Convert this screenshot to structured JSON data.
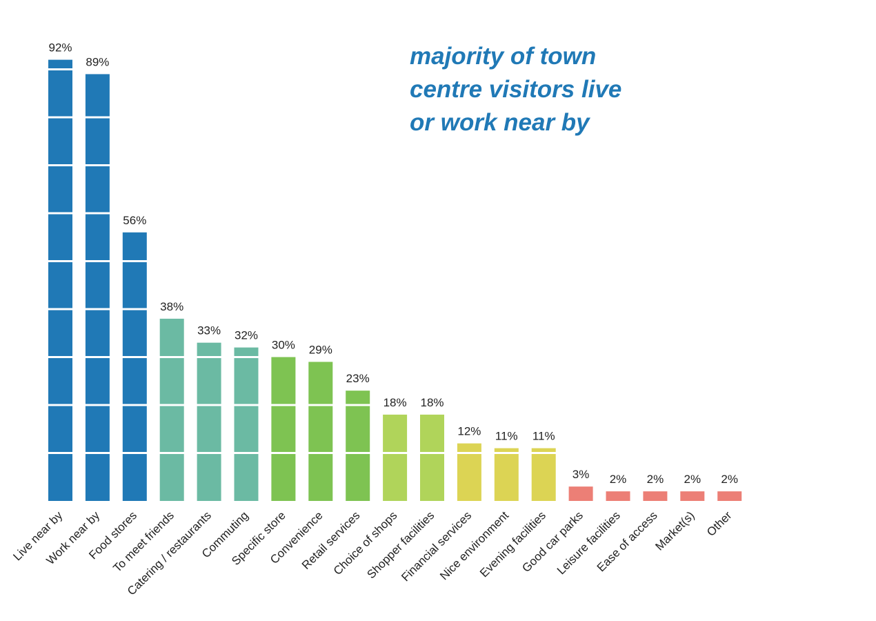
{
  "headline": {
    "lines": [
      "majority of town",
      "centre visitors live",
      "or work near by"
    ]
  },
  "chart_data": {
    "type": "bar",
    "categories": [
      "Live near by",
      "Work near by",
      "Food stores",
      "To meet friends",
      "Catering / restaurants",
      "Commuting",
      "Specific store",
      "Convenience",
      "Retail services",
      "Choice of shops",
      "Shopper facilities",
      "Financial services",
      "Nice environment",
      "Evening facilities",
      "Good car parks",
      "Leisure facilities",
      "Ease of access",
      "Market(s)",
      "Other"
    ],
    "values": [
      92,
      89,
      56,
      38,
      33,
      32,
      30,
      29,
      23,
      18,
      18,
      12,
      11,
      11,
      3,
      2,
      2,
      2,
      2
    ],
    "data_labels": [
      "92%",
      "89%",
      "56%",
      "38%",
      "33%",
      "32%",
      "30%",
      "29%",
      "23%",
      "18%",
      "18%",
      "12%",
      "11%",
      "11%",
      "3%",
      "2%",
      "2%",
      "2%",
      "2%"
    ],
    "colors": [
      "#2079b6",
      "#2079b6",
      "#2079b6",
      "#6bbaa3",
      "#6bbaa3",
      "#6bbaa3",
      "#7ec352",
      "#7ec352",
      "#7ec352",
      "#b0d45a",
      "#b0d45a",
      "#dcd454",
      "#dcd454",
      "#dcd454",
      "#ec7f76",
      "#ec7f76",
      "#ec7f76",
      "#ec7f76",
      "#ec7f76"
    ],
    "segment_divisions": [
      10,
      20,
      30,
      40,
      50,
      60,
      70,
      80,
      90
    ],
    "ylim": [
      0,
      100
    ],
    "title": "",
    "xlabel": "",
    "ylabel": "",
    "grid": false,
    "legend": "none"
  }
}
